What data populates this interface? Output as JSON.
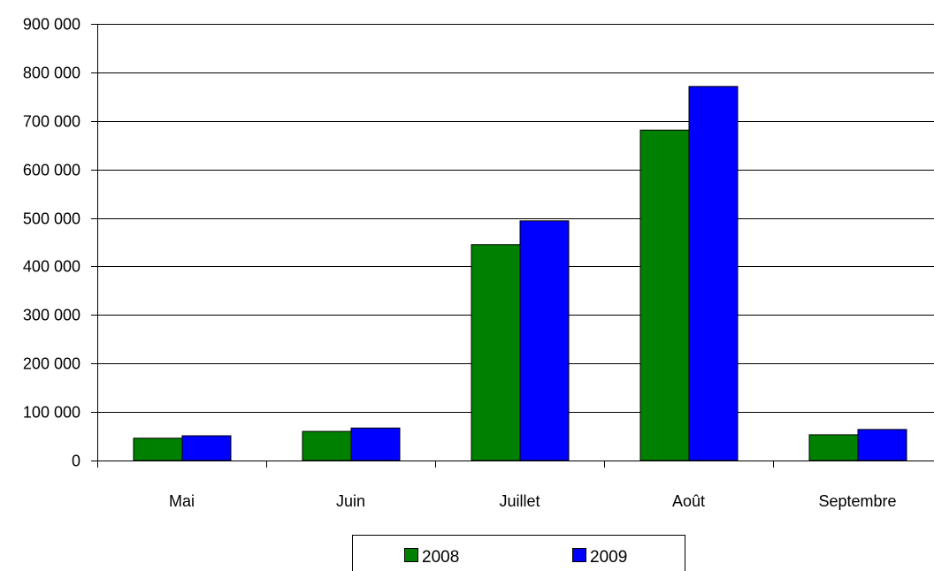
{
  "chart_data": {
    "type": "bar",
    "categories": [
      "Mai",
      "Juin",
      "Juillet",
      "Août",
      "Septembre"
    ],
    "series": [
      {
        "name": "2008",
        "color": "#008000",
        "values": [
          46000,
          60000,
          445000,
          681000,
          53000
        ]
      },
      {
        "name": "2009",
        "color": "#0000ff",
        "values": [
          51000,
          67000,
          494000,
          771000,
          64000
        ]
      }
    ],
    "y_ticks": [
      "0",
      "100 000",
      "200 000",
      "300 000",
      "400 000",
      "500 000",
      "600 000",
      "700 000",
      "800 000",
      "900 000"
    ],
    "ylim": [
      0,
      900000
    ],
    "grid": true,
    "legend_position": "bottom-center"
  }
}
